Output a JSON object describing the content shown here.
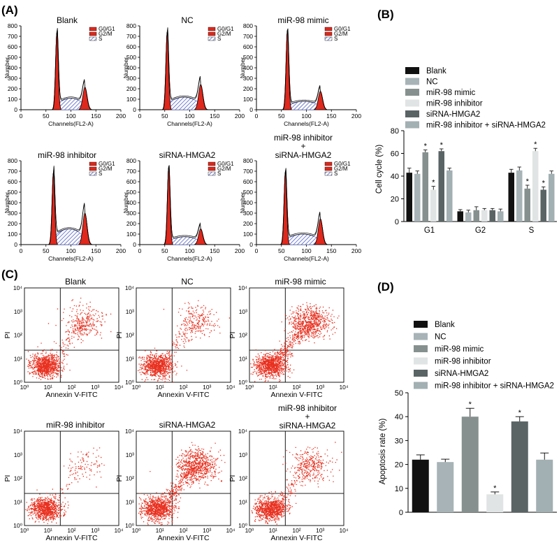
{
  "panels": {
    "A": "(A)",
    "B": "(B)",
    "C": "(C)",
    "D": "(D)"
  },
  "flow": {
    "ylabel": "Number",
    "xlabel": "Channels(FL2-A)",
    "legend": [
      "G0/G1",
      "G2/M",
      "S"
    ],
    "xticks": [
      "0",
      "50",
      "100",
      "150",
      "200"
    ],
    "yticks": [
      "0",
      "100",
      "200",
      "300",
      "400",
      "500",
      "600",
      "700",
      "800"
    ],
    "titles": [
      "Blank",
      "NC",
      "miR-98 mimic",
      "miR-98 inhibitor",
      "siRNA-HMGA2",
      "miR-98 inhibitor",
      "+",
      "siRNA-HMGA2"
    ]
  },
  "scatter": {
    "ylabel": "PI",
    "xlabel": "Annexin V-FITC",
    "ticks": [
      "10⁰",
      "10¹",
      "10²",
      "10³",
      "10⁴"
    ],
    "titles": [
      "Blank",
      "NC",
      "miR-98 mimic",
      "miR-98 inhibitor",
      "siRNA-HMGA2",
      "miR-98 inhibitor",
      "+",
      "siRNA-HMGA2"
    ]
  },
  "colors": {
    "Blank": "#111111",
    "NC": "#a7b3b7",
    "miR-98 mimic": "#86908f",
    "miR-98 inhibitor": "#e0e4e4",
    "siRNA-HMGA2": "#5a6465",
    "miR-98 inhibitor + siRNA-HMGA2": "#a2afb3",
    "flow_red": "#e0281c",
    "dot_red": "#e8301f"
  },
  "chart_data": [
    {
      "id": "B",
      "type": "bar",
      "title": "",
      "ylabel": "Cell cycle (%)",
      "xlabel": "",
      "ylim": [
        0,
        80
      ],
      "yticks": [
        0,
        20,
        40,
        60,
        80
      ],
      "categories": [
        "G1",
        "G2",
        "S"
      ],
      "series": [
        {
          "name": "Blank",
          "values": [
            43,
            9,
            43
          ],
          "errors": [
            4,
            1.5,
            3
          ]
        },
        {
          "name": "NC",
          "values": [
            42,
            8,
            45
          ],
          "errors": [
            2.5,
            2,
            3
          ]
        },
        {
          "name": "miR-98 mimic",
          "values": [
            61,
            10,
            29
          ],
          "errors": [
            2,
            3,
            3
          ]
        },
        {
          "name": "miR-98 inhibitor",
          "values": [
            28,
            10,
            62
          ],
          "errors": [
            3,
            1.5,
            2.5
          ]
        },
        {
          "name": "siRNA-HMGA2",
          "values": [
            62,
            10,
            28
          ],
          "errors": [
            2,
            1.5,
            2.5
          ]
        },
        {
          "name": "miR-98 inhibitor + siRNA-HMGA2",
          "values": [
            45,
            9,
            42
          ],
          "errors": [
            2,
            2,
            2.5
          ]
        }
      ],
      "significant": [
        [
          false,
          false,
          true,
          true,
          true,
          false
        ],
        [
          false,
          false,
          false,
          false,
          false,
          false
        ],
        [
          false,
          false,
          true,
          true,
          true,
          false
        ]
      ],
      "sig_label": "*"
    },
    {
      "id": "D",
      "type": "bar",
      "title": "",
      "ylabel": "Apoptosis rate (%)",
      "xlabel": "",
      "ylim": [
        0,
        50
      ],
      "yticks": [
        0,
        10,
        20,
        30,
        40,
        50
      ],
      "categories": [
        "Blank",
        "NC",
        "miR-98 mimic",
        "miR-98 inhibitor",
        "siRNA-HMGA2",
        "miR-98 inhibitor + siRNA-HMGA2"
      ],
      "values": [
        22,
        21,
        40,
        7.5,
        38,
        22
      ],
      "errors": [
        2,
        1.2,
        3.5,
        1,
        2,
        2.8
      ],
      "significant": [
        false,
        false,
        true,
        true,
        true,
        false
      ],
      "sig_label": "*"
    }
  ]
}
